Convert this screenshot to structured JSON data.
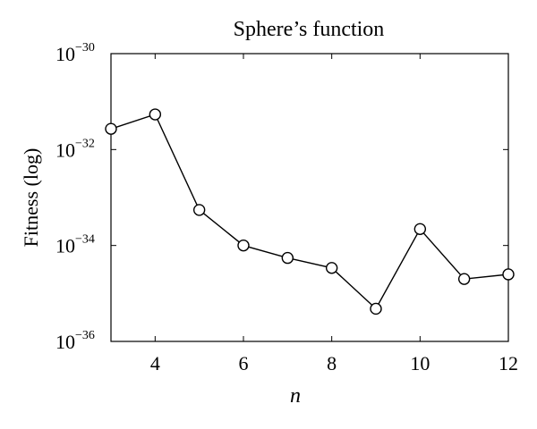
{
  "chart_data": {
    "type": "line",
    "title": "Sphere’s function",
    "xlabel": "n",
    "ylabel": "Fitness (log)",
    "yscale": "log",
    "xlim": [
      3,
      12
    ],
    "ylim": [
      1e-36,
      1e-30
    ],
    "x_ticks": [
      4,
      6,
      8,
      10,
      12
    ],
    "y_ticks": [
      {
        "base": "10",
        "exp": "−36",
        "value": 1e-36
      },
      {
        "base": "10",
        "exp": "−34",
        "value": 1e-34
      },
      {
        "base": "10",
        "exp": "−32",
        "value": 1e-32
      },
      {
        "base": "10",
        "exp": "−30",
        "value": 1e-30
      }
    ],
    "marker": "open-circle",
    "line_color": "#000000",
    "grid": false,
    "series": [
      {
        "x": [
          3,
          4,
          5,
          6,
          7,
          8,
          9,
          10,
          11,
          12
        ],
        "y": [
          2.7e-32,
          5.4e-32,
          5.5e-34,
          1e-34,
          5.5e-35,
          3.4e-35,
          4.8e-36,
          2.2e-34,
          2e-35,
          2.5e-35
        ]
      }
    ]
  }
}
